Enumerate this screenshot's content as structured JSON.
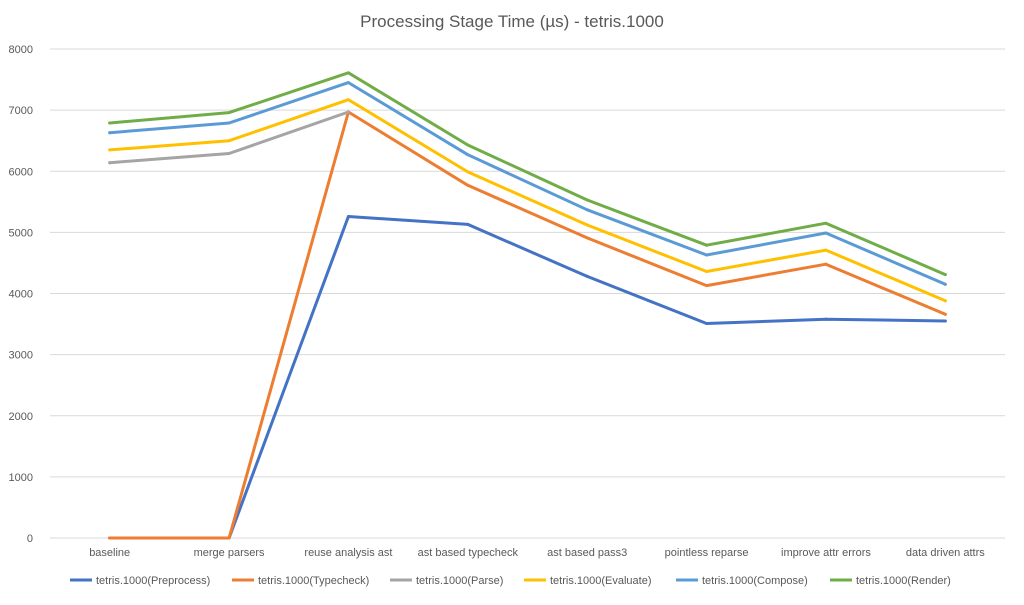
{
  "chart_data": {
    "type": "line",
    "title": "Processing Stage Time (µs) - tetris.1000",
    "xlabel": "",
    "ylabel": "",
    "ylim": [
      0,
      8000
    ],
    "yticks": [
      "0",
      "1000",
      "2000",
      "3000",
      "4000",
      "5000",
      "6000",
      "7000",
      "8000"
    ],
    "grid": true,
    "legend_position": "bottom",
    "categories": [
      "baseline",
      "merge parsers",
      "reuse analysis ast",
      "ast based typecheck",
      "ast based pass3",
      "pointless reparse",
      "improve attr errors",
      "data driven attrs"
    ],
    "series": [
      {
        "name": "tetris.1000(Preprocess)",
        "color": "#4472c4",
        "values": [
          0,
          0,
          5260,
          5130,
          4280,
          3510,
          3580,
          3550
        ]
      },
      {
        "name": "tetris.1000(Typecheck)",
        "color": "#ed7d31",
        "values": [
          0,
          0,
          6970,
          5770,
          4910,
          4130,
          4480,
          3660
        ]
      },
      {
        "name": "tetris.1000(Parse)",
        "color": "#a5a5a5",
        "values": [
          6140,
          6290,
          6970,
          null,
          null,
          null,
          null,
          null
        ]
      },
      {
        "name": "tetris.1000(Evaluate)",
        "color": "#ffc000",
        "values": [
          6350,
          6500,
          7170,
          5990,
          5120,
          4360,
          4710,
          3880
        ]
      },
      {
        "name": "tetris.1000(Compose)",
        "color": "#5b9bd5",
        "values": [
          6630,
          6790,
          7450,
          6270,
          5370,
          4630,
          4990,
          4150
        ]
      },
      {
        "name": "tetris.1000(Render)",
        "color": "#70ad47",
        "values": [
          6790,
          6960,
          7610,
          6430,
          5530,
          4790,
          5150,
          4310
        ]
      }
    ]
  }
}
